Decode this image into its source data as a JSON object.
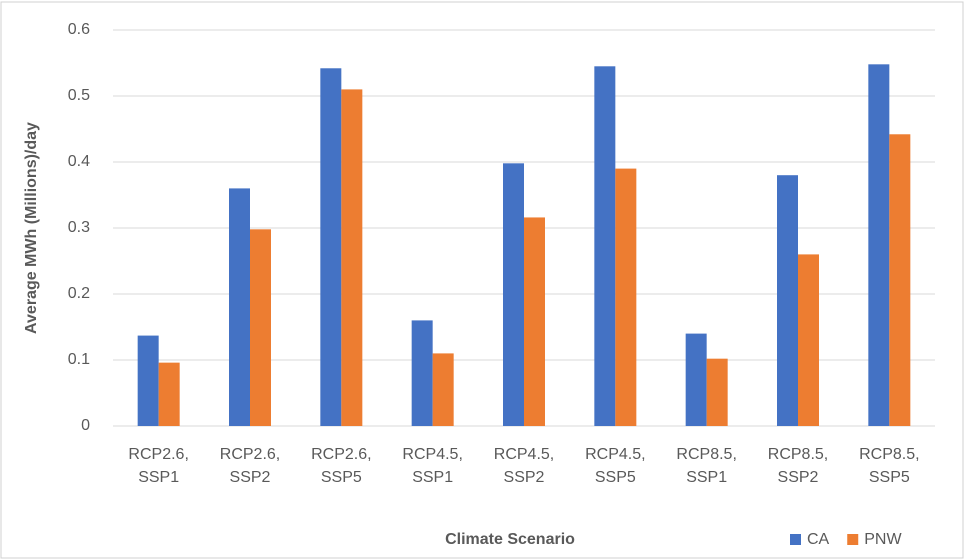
{
  "chart_data": {
    "type": "bar",
    "x_label": "Climate Scenario",
    "y_label": "Average  MWh  (Millions)/day",
    "categories": [
      "RCP2.6, SSP1",
      "RCP2.6, SSP2",
      "RCP2.6, SSP5",
      "RCP4.5, SSP1",
      "RCP4.5, SSP2",
      "RCP4.5, SSP5",
      "RCP8.5, SSP1",
      "RCP8.5, SSP2",
      "RCP8.5, SSP5"
    ],
    "series": [
      {
        "name": "CA",
        "color": "#4472c4",
        "values": [
          0.137,
          0.36,
          0.542,
          0.16,
          0.398,
          0.545,
          0.14,
          0.38,
          0.548
        ]
      },
      {
        "name": "PNW",
        "color": "#ed7d31",
        "values": [
          0.096,
          0.298,
          0.51,
          0.11,
          0.316,
          0.39,
          0.102,
          0.26,
          0.442
        ]
      }
    ],
    "ylim": [
      0,
      0.6
    ],
    "yticks": [
      0,
      0.1,
      0.2,
      0.3,
      0.4,
      0.5,
      0.6
    ],
    "grid": true,
    "legend": "bottom-right"
  }
}
